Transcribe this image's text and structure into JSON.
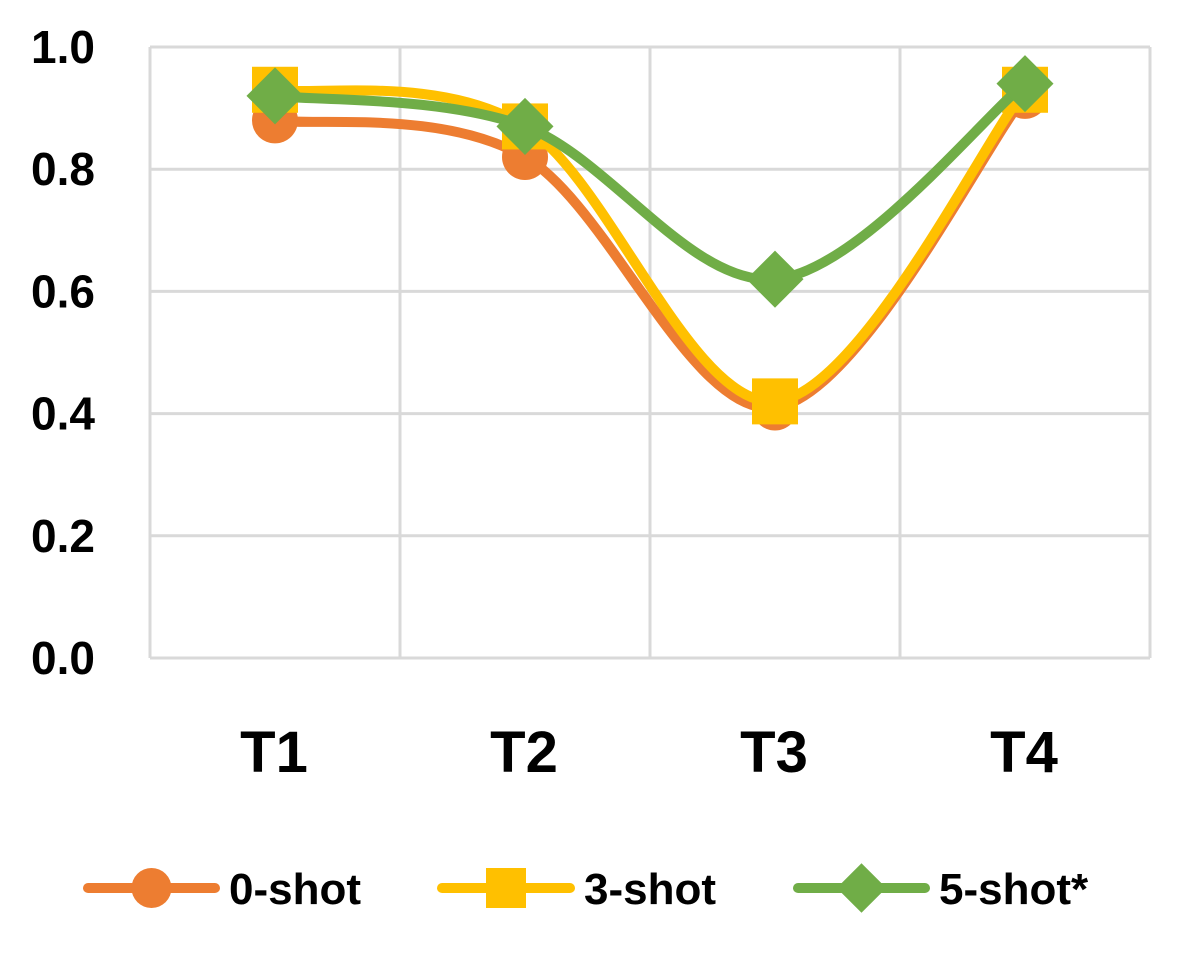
{
  "chart_data": {
    "type": "line",
    "categories": [
      "T1",
      "T2",
      "T3",
      "T4"
    ],
    "series": [
      {
        "name": "0-shot",
        "values": [
          0.88,
          0.82,
          0.41,
          0.92
        ],
        "color": "#ED7D31",
        "marker": "circle"
      },
      {
        "name": "3-shot",
        "values": [
          0.93,
          0.87,
          0.42,
          0.93
        ],
        "color": "#FFC000",
        "marker": "square"
      },
      {
        "name": "5-shot*",
        "values": [
          0.92,
          0.87,
          0.62,
          0.94
        ],
        "color": "#70AD47",
        "marker": "diamond"
      }
    ],
    "yticks": [
      "0.0",
      "0.2",
      "0.4",
      "0.6",
      "0.8",
      "1.0"
    ],
    "ylim": [
      0,
      1.0
    ],
    "grid": true,
    "smooth": true,
    "legend_position": "bottom",
    "gridline_color": "#D9D9D9"
  }
}
